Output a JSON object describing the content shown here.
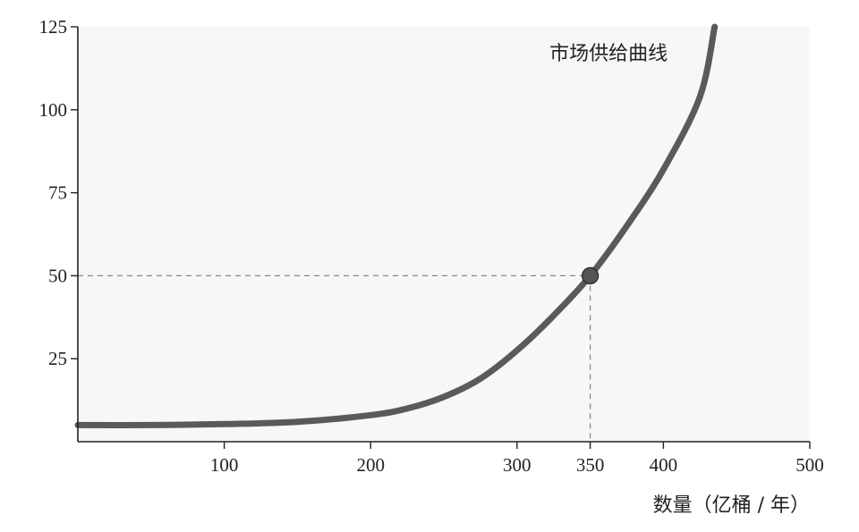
{
  "chart_data": {
    "type": "line",
    "title": "",
    "xlabel": "数量（亿桶 / 年）",
    "ylabel": "",
    "xlim": [
      0,
      500
    ],
    "ylim": [
      0,
      125
    ],
    "x_ticks": [
      100,
      200,
      300,
      350,
      400,
      500
    ],
    "y_ticks": [
      25,
      50,
      75,
      100,
      125
    ],
    "grid": false,
    "series": [
      {
        "name": "市场供给曲线",
        "color": "#5a5a5e",
        "x": [
          0,
          50,
          100,
          150,
          200,
          225,
          250,
          275,
          300,
          325,
          350,
          375,
          400,
          425,
          435
        ],
        "y": [
          5,
          5,
          5.3,
          6,
          8,
          10,
          13.5,
          19,
          27.5,
          38,
          50,
          65,
          82,
          104,
          125
        ]
      }
    ],
    "highlight_point": {
      "x": 350,
      "y": 50,
      "color": "#555555"
    },
    "guide_lines": {
      "style": "dashed",
      "color": "#888888"
    },
    "annotations": [
      {
        "text": "市场供给曲线",
        "x": 420,
        "y": 122
      }
    ]
  }
}
